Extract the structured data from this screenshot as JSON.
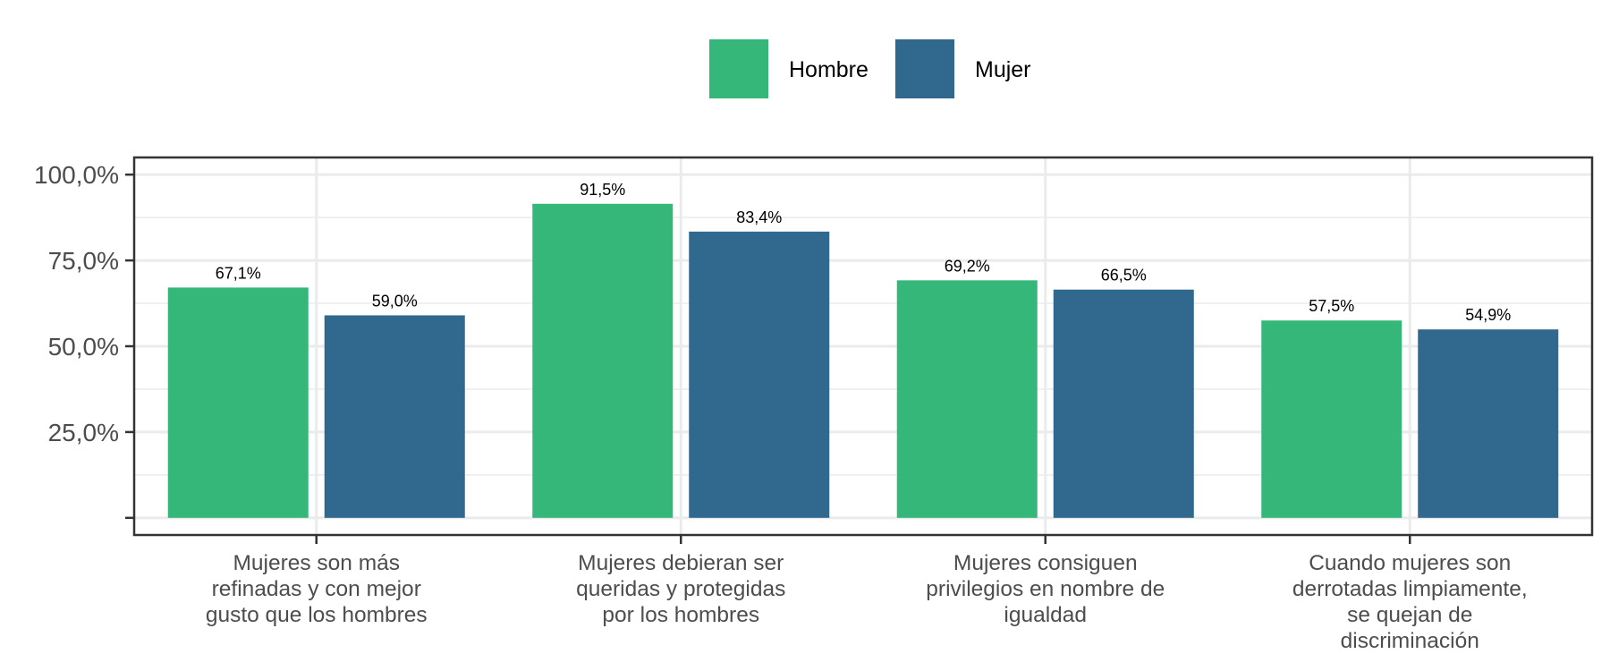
{
  "chart_data": {
    "type": "bar",
    "categories": [
      [
        "Mujeres son más",
        "refinadas y con mejor",
        "gusto que los hombres"
      ],
      [
        "Mujeres debieran ser",
        "queridas y protegidas",
        "por los hombres"
      ],
      [
        "Mujeres consiguen",
        "privilegios en nombre de",
        "igualdad"
      ],
      [
        "Cuando mujeres son",
        "derrotadas limpiamente,",
        "se quejan de",
        "discriminación"
      ]
    ],
    "series": [
      {
        "name": "Hombre",
        "color": "#35b779",
        "values": [
          67.1,
          91.5,
          69.2,
          57.5
        ],
        "labels": [
          "67,1%",
          "91,5%",
          "69,2%",
          "57,5%"
        ]
      },
      {
        "name": "Mujer",
        "color": "#31688e",
        "values": [
          59.0,
          83.4,
          66.5,
          54.9
        ],
        "labels": [
          "59,0%",
          "83,4%",
          "66,5%",
          "54,9%"
        ]
      }
    ],
    "y_ticks": [
      {
        "value": 25,
        "label": "25,0%"
      },
      {
        "value": 50,
        "label": "50,0%"
      },
      {
        "value": 75,
        "label": "75,0%"
      },
      {
        "value": 100,
        "label": "100,0%"
      }
    ],
    "ylim": [
      -5,
      105
    ],
    "grid": true,
    "legend_position": "top"
  }
}
